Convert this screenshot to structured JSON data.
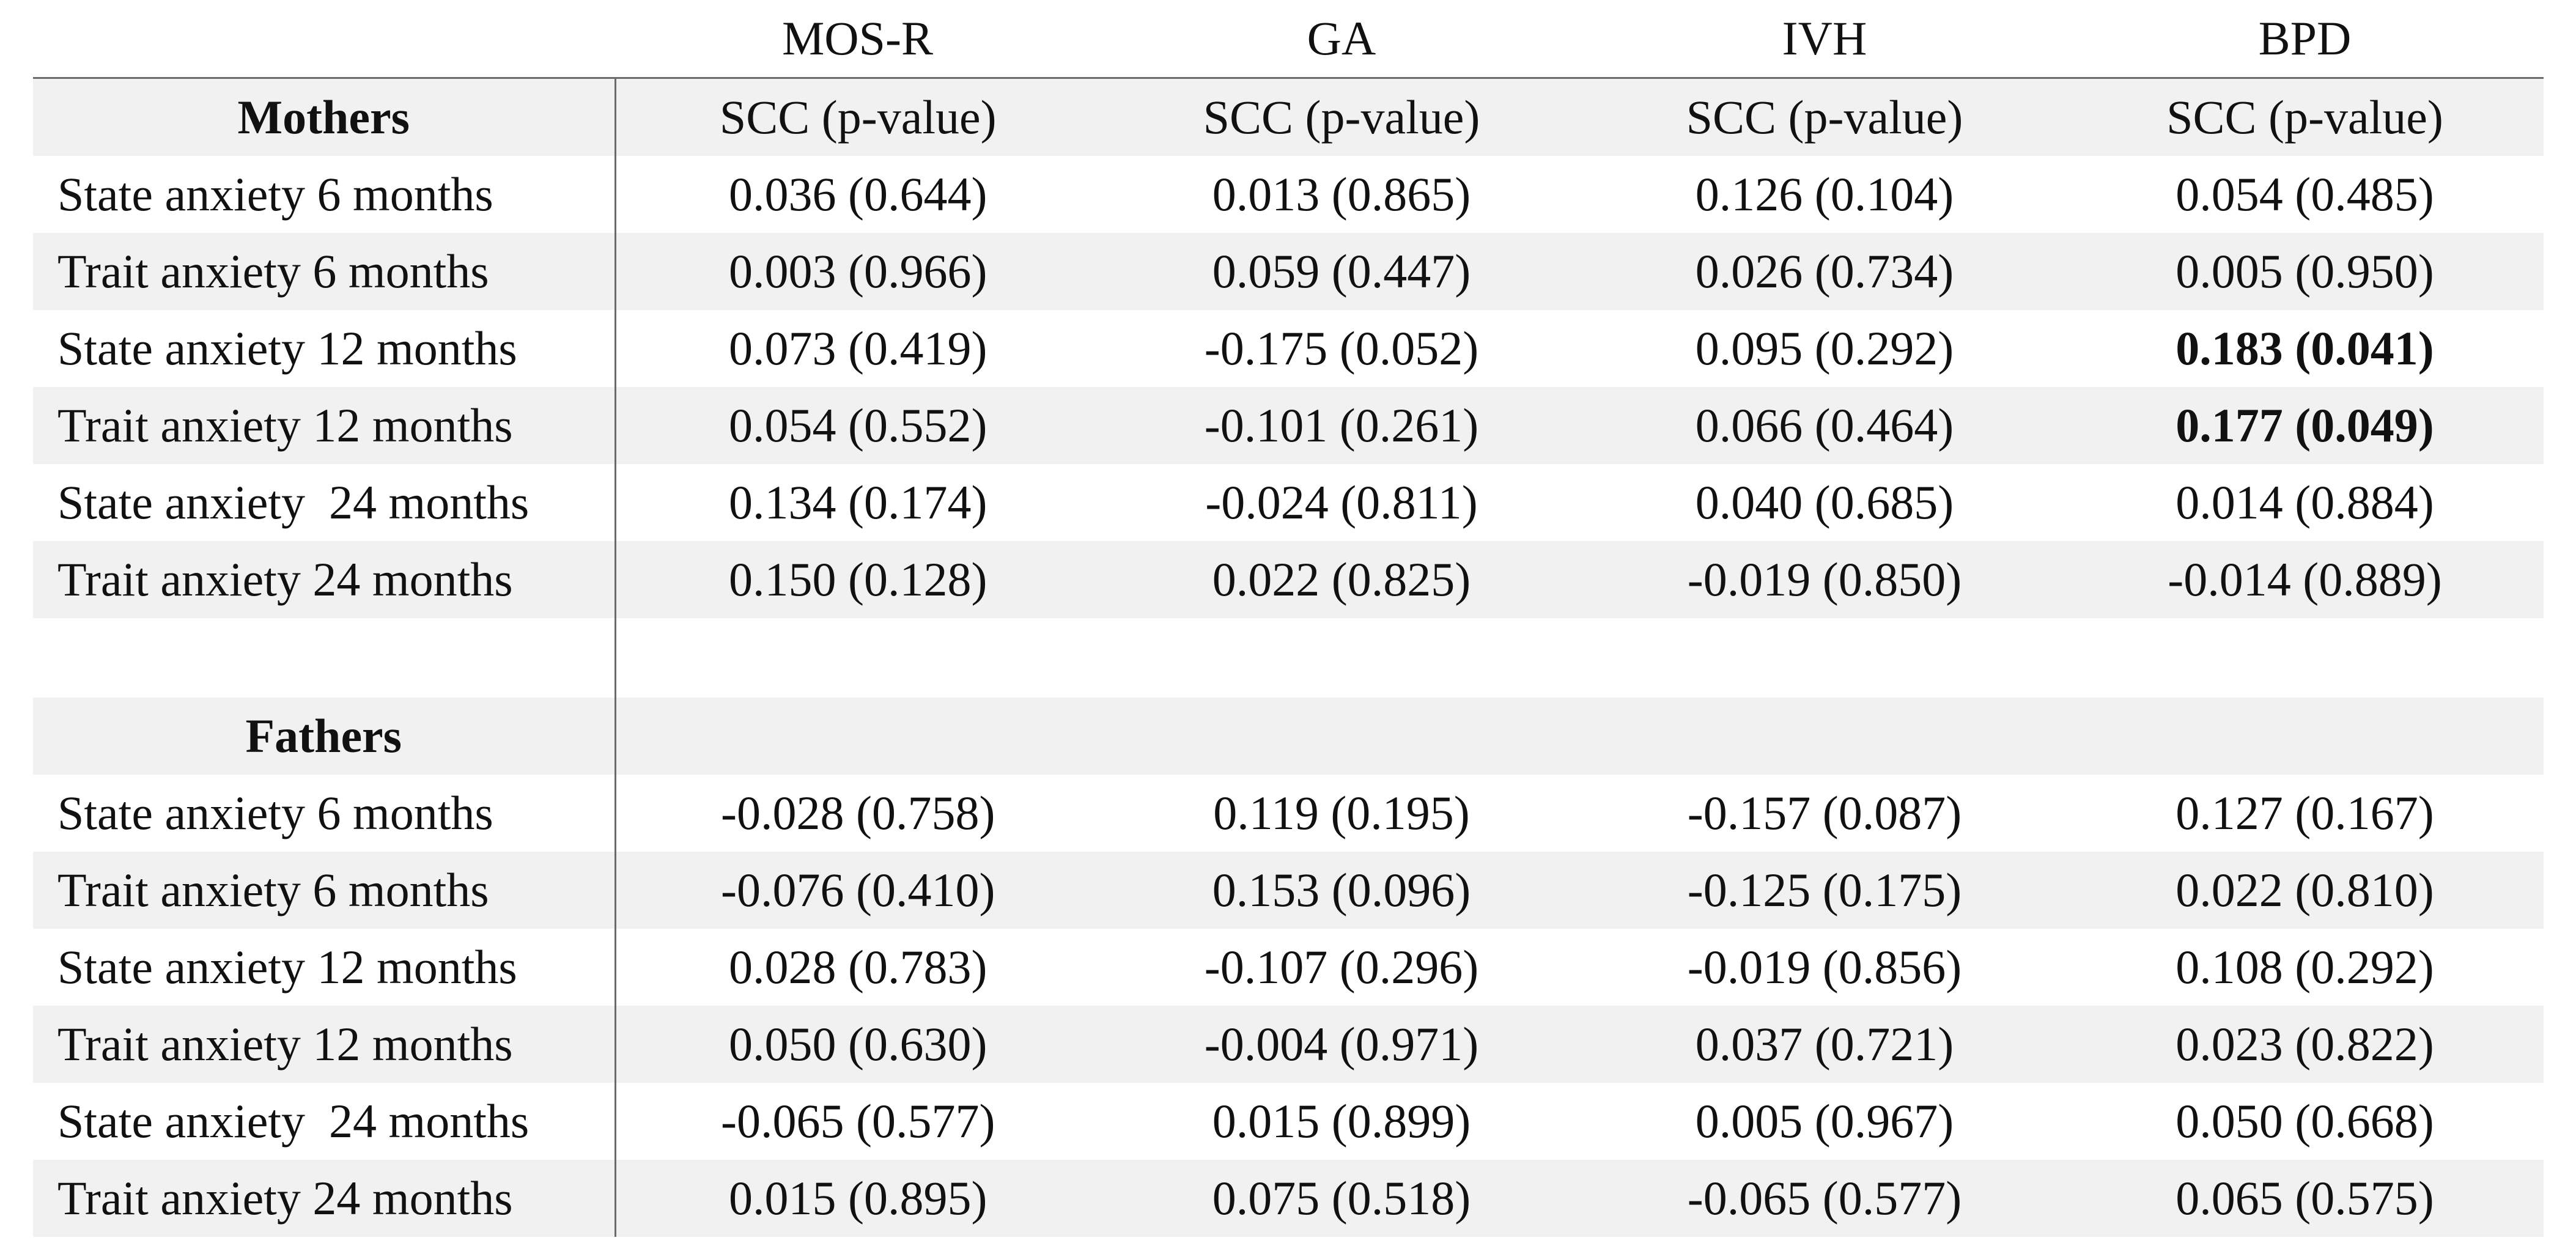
{
  "columns": [
    "MOS-R",
    "GA",
    "IVH",
    "BPD"
  ],
  "subheader": "SCC (p-value)",
  "groups": [
    {
      "name": "Mothers",
      "rows": [
        {
          "label": "State anxiety 6 months",
          "values": [
            "0.036 (0.644)",
            "0.013 (0.865)",
            "0.126 (0.104)",
            "0.054 (0.485)"
          ],
          "bold": [
            false,
            false,
            false,
            false
          ]
        },
        {
          "label": "Trait anxiety 6 months",
          "values": [
            "0.003 (0.966)",
            "0.059 (0.447)",
            "0.026 (0.734)",
            "0.005 (0.950)"
          ],
          "bold": [
            false,
            false,
            false,
            false
          ]
        },
        {
          "label": "State anxiety 12 months",
          "values": [
            "0.073 (0.419)",
            "-0.175 (0.052)",
            "0.095 (0.292)",
            "0.183 (0.041)"
          ],
          "bold": [
            false,
            false,
            false,
            true
          ]
        },
        {
          "label": "Trait anxiety 12 months",
          "values": [
            "0.054 (0.552)",
            "-0.101 (0.261)",
            "0.066 (0.464)",
            "0.177 (0.049)"
          ],
          "bold": [
            false,
            false,
            false,
            true
          ]
        },
        {
          "label": "State anxiety  24 months",
          "values": [
            "0.134 (0.174)",
            "-0.024 (0.811)",
            "0.040 (0.685)",
            "0.014 (0.884)"
          ],
          "bold": [
            false,
            false,
            false,
            false
          ]
        },
        {
          "label": "Trait anxiety 24 months",
          "values": [
            "0.150 (0.128)",
            "0.022 (0.825)",
            "-0.019 (0.850)",
            "-0.014 (0.889)"
          ],
          "bold": [
            false,
            false,
            false,
            false
          ]
        }
      ]
    },
    {
      "name": "Fathers",
      "rows": [
        {
          "label": "State anxiety 6 months",
          "values": [
            "-0.028 (0.758)",
            "0.119 (0.195)",
            "-0.157 (0.087)",
            "0.127 (0.167)"
          ],
          "bold": [
            false,
            false,
            false,
            false
          ]
        },
        {
          "label": "Trait anxiety 6 months",
          "values": [
            "-0.076 (0.410)",
            "0.153 (0.096)",
            "-0.125 (0.175)",
            "0.022 (0.810)"
          ],
          "bold": [
            false,
            false,
            false,
            false
          ]
        },
        {
          "label": "State anxiety 12 months",
          "values": [
            "0.028 (0.783)",
            "-0.107 (0.296)",
            "-0.019 (0.856)",
            "0.108 (0.292)"
          ],
          "bold": [
            false,
            false,
            false,
            false
          ]
        },
        {
          "label": "Trait anxiety 12 months",
          "values": [
            "0.050 (0.630)",
            "-0.004 (0.971)",
            "0.037 (0.721)",
            "0.023 (0.822)"
          ],
          "bold": [
            false,
            false,
            false,
            false
          ]
        },
        {
          "label": "State anxiety  24 months",
          "values": [
            "-0.065 (0.577)",
            "0.015 (0.899)",
            "0.005 (0.967)",
            "0.050 (0.668)"
          ],
          "bold": [
            false,
            false,
            false,
            false
          ]
        },
        {
          "label": "Trait anxiety 24 months",
          "values": [
            "0.015 (0.895)",
            "0.075 (0.518)",
            "-0.065 (0.577)",
            "0.065 (0.575)"
          ],
          "bold": [
            false,
            false,
            false,
            false
          ]
        }
      ]
    }
  ]
}
